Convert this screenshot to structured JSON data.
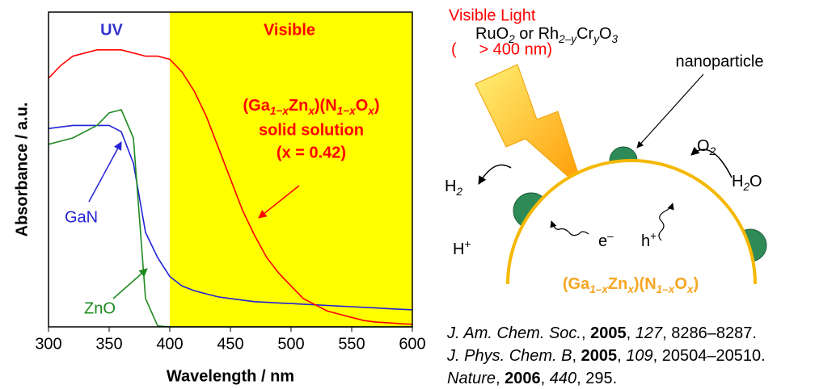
{
  "chart_data": {
    "type": "line",
    "xlabel": "Wavelength / nm",
    "ylabel": "Absorbance / a.u.",
    "x": [
      300,
      310,
      320,
      330,
      340,
      350,
      360,
      370,
      380,
      390,
      400,
      410,
      420,
      430,
      440,
      450,
      460,
      470,
      480,
      490,
      500,
      510,
      520,
      530,
      540,
      550,
      560,
      570,
      580,
      590,
      600
    ],
    "xlim": [
      300,
      600
    ],
    "xticks": [
      300,
      350,
      400,
      450,
      500,
      550,
      600
    ],
    "ylim": [
      0,
      1
    ],
    "highlight": {
      "xlim": [
        400,
        600
      ],
      "color": "#ffff00"
    },
    "region_labels": [
      {
        "text": "UV",
        "color": "#3333cc"
      },
      {
        "text": "Visible",
        "color": "#ff0000"
      }
    ],
    "series": [
      {
        "name": "GaN",
        "color": "#2323d6",
        "values": [
          0.63,
          0.635,
          0.64,
          0.64,
          0.64,
          0.64,
          0.62,
          0.52,
          0.3,
          0.22,
          0.16,
          0.13,
          0.115,
          0.105,
          0.095,
          0.09,
          0.085,
          0.08,
          0.078,
          0.076,
          0.074,
          0.072,
          0.07,
          0.068,
          0.066,
          0.064,
          0.062,
          0.06,
          0.058,
          0.056,
          0.054
        ]
      },
      {
        "name": "ZnO",
        "color": "#1e8a1e",
        "values": [
          0.58,
          0.59,
          0.6,
          0.62,
          0.64,
          0.68,
          0.69,
          0.6,
          0.09,
          0.003,
          0,
          0,
          0,
          0,
          0,
          0,
          0,
          0,
          0,
          0,
          0,
          0,
          0,
          0,
          0,
          0,
          0,
          0,
          0,
          0,
          0
        ]
      },
      {
        "name": [
          "(Ga",
          "1−x",
          "Zn",
          "x",
          ")(N",
          "1−x",
          "O",
          "x",
          ")"
        ],
        "color": "#ff0000",
        "values": [
          0.79,
          0.83,
          0.86,
          0.87,
          0.88,
          0.88,
          0.88,
          0.87,
          0.86,
          0.86,
          0.85,
          0.81,
          0.75,
          0.67,
          0.57,
          0.47,
          0.37,
          0.29,
          0.22,
          0.17,
          0.13,
          0.09,
          0.07,
          0.05,
          0.04,
          0.03,
          0.02,
          0.015,
          0.013,
          0.01,
          0.008
        ]
      }
    ],
    "annotations": [
      "solid solution",
      "(x = 0.42)"
    ]
  },
  "diagram": {
    "light": [
      "Visible Light",
      "(     > 400 nm)"
    ],
    "cocatalyst": [
      "RuO",
      "2",
      " or Rh",
      "2–y",
      "Cr",
      "y",
      "O",
      "3"
    ],
    "cocatalyst_line2": "nanoparticle",
    "o2": [
      "O",
      "2"
    ],
    "h2o": [
      "H",
      "2",
      "O"
    ],
    "h2": [
      "H",
      "2"
    ],
    "hplus": [
      "H",
      "+"
    ],
    "electron": [
      "e",
      "–"
    ],
    "hole": [
      "h",
      "+"
    ],
    "catalyst": [
      "(Ga",
      "1–x",
      "Zn",
      "x",
      ")(N",
      "1–x",
      "O",
      "x",
      ")"
    ],
    "citations": [
      [
        "J. Am. Chem. Soc.",
        ", ",
        "2005",
        ", ",
        "127",
        ", 8286–8287."
      ],
      [
        "J. Phys. Chem. B",
        ", ",
        "2005",
        ", ",
        "109",
        ", 20504–20510."
      ],
      [
        "Nature",
        ", ",
        "2006",
        ", ",
        "440",
        ", 295."
      ]
    ]
  }
}
